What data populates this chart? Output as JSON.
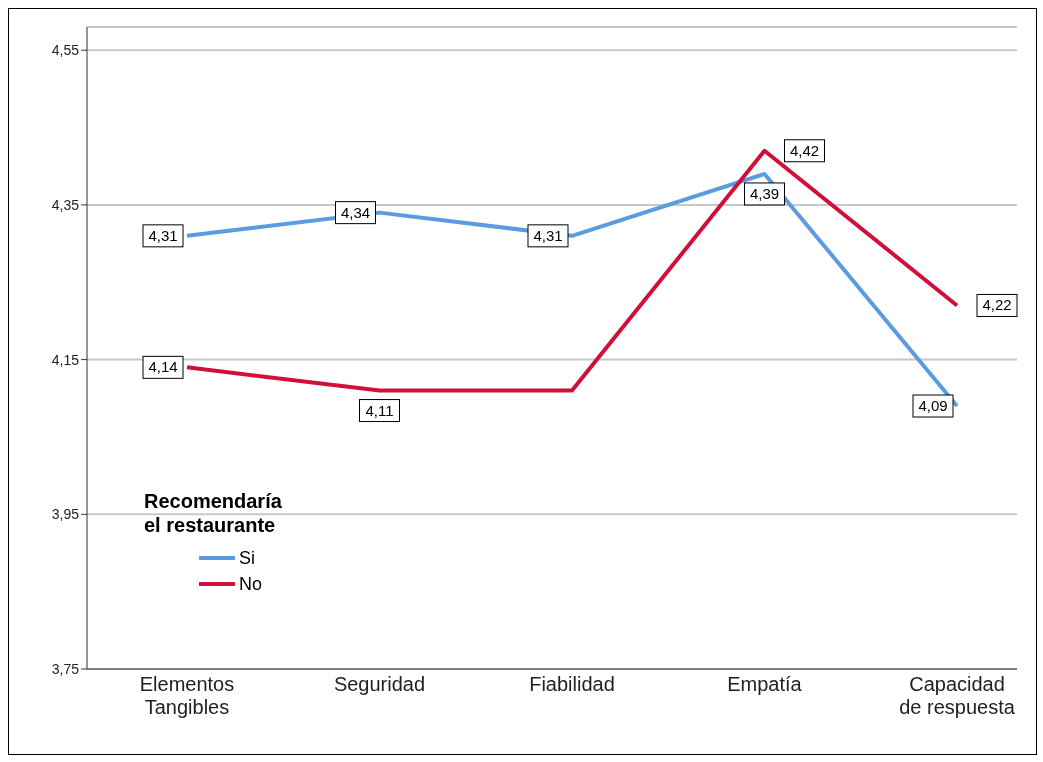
{
  "chart_data": {
    "type": "line",
    "legend_title": "Recomendaría el restaurante",
    "categories": [
      "Elementos Tangibles",
      "Seguridad",
      "Fiabilidad",
      "Empatía",
      "Capacidad de respuesta"
    ],
    "series": [
      {
        "name": "Si",
        "color": "#5b9bdf",
        "values": [
          4.31,
          4.34,
          4.31,
          4.39,
          4.09
        ],
        "value_labels": [
          "4,31",
          "4,34",
          "4,31",
          "4,39",
          "4,09"
        ]
      },
      {
        "name": "No",
        "color": "#d0103a",
        "values": [
          4.14,
          4.11,
          4.11,
          4.42,
          4.22
        ],
        "value_labels": [
          "4,14",
          "4,11",
          null,
          "4,42",
          "4,22"
        ]
      }
    ],
    "ylim": [
      3.75,
      4.58
    ],
    "yticks": [
      {
        "value": 3.75,
        "label": "3,75"
      },
      {
        "value": 3.95,
        "label": "3,95"
      },
      {
        "value": 4.15,
        "label": "4,15"
      },
      {
        "value": 4.35,
        "label": "4,35"
      },
      {
        "value": 4.55,
        "label": "4,55"
      }
    ],
    "grid": "y",
    "legend": "left",
    "marker": "none",
    "line_style": "solid"
  }
}
